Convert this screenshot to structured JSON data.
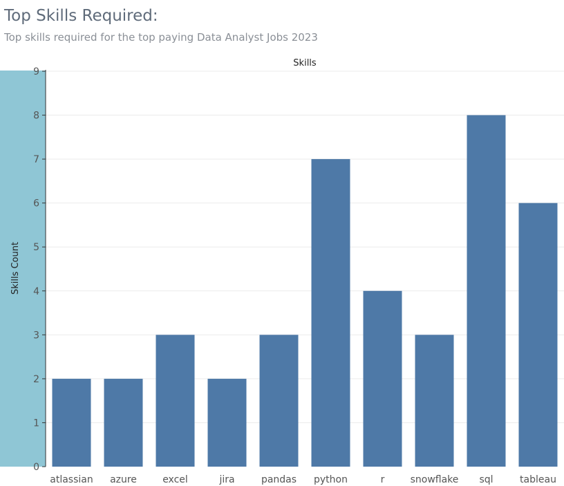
{
  "header": {
    "title": "Top Skills Required:",
    "subtitle": "Top skills required for the top paying Data Analyst Jobs 2023"
  },
  "colors": {
    "bar": "#4e79a7",
    "axis_band": "#8fc6d5",
    "gridline": "#ebebeb"
  },
  "chart_data": {
    "type": "bar",
    "xlabel": "Skills",
    "ylabel": "Skills Count",
    "categories": [
      "atlassian",
      "azure",
      "excel",
      "jira",
      "pandas",
      "python",
      "r",
      "snowflake",
      "sql",
      "tableau"
    ],
    "values": [
      2,
      2,
      3,
      2,
      3,
      7,
      4,
      3,
      8,
      6
    ],
    "ylim": [
      0,
      9
    ],
    "yticks": [
      "0",
      "1",
      "2",
      "3",
      "4",
      "5",
      "6",
      "7",
      "8",
      "9"
    ],
    "grid": true,
    "legend": "none"
  }
}
